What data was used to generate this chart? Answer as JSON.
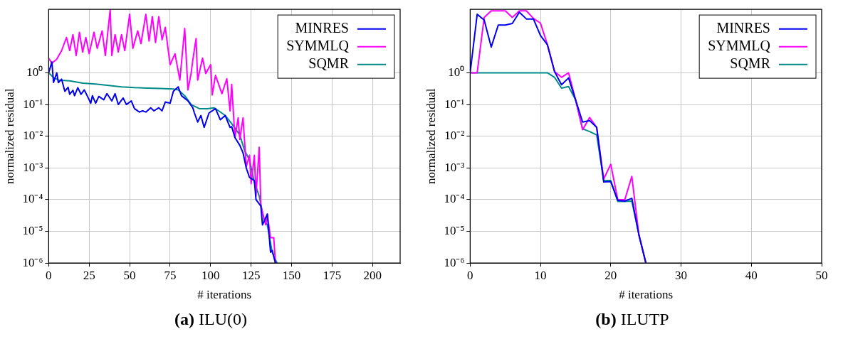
{
  "chart_data": [
    {
      "type": "line",
      "title": "(a) ILU(0)",
      "xlabel": "# iterations",
      "ylabel": "normalized residual",
      "log": "y",
      "grid": true,
      "legend": "top right",
      "line_style": "solid",
      "marker": "none",
      "xlim": [
        0,
        217
      ],
      "xticks": [
        0,
        25,
        50,
        75,
        100,
        125,
        150,
        175,
        200
      ],
      "ylim": [
        1e-06,
        100
      ],
      "yticks": [
        {
          "value": 1e-06,
          "label": "10⁻⁶"
        },
        {
          "value": 1e-05,
          "label": "10⁻⁵"
        },
        {
          "value": 0.0001,
          "label": "10⁻⁴"
        },
        {
          "value": 0.001,
          "label": "10⁻³"
        },
        {
          "value": 0.01,
          "label": "10⁻²"
        },
        {
          "value": 0.1,
          "label": "10⁻¹"
        },
        {
          "value": 1,
          "label": "10⁰"
        }
      ],
      "series": [
        {
          "name": "MINRES",
          "color": "#0000ee",
          "x": [
            0,
            2,
            3,
            5,
            6,
            8,
            10,
            12,
            13,
            15,
            16,
            18,
            20,
            22,
            24,
            26,
            27,
            29,
            31,
            34,
            36,
            39,
            41,
            43,
            46,
            48,
            51,
            53,
            56,
            58,
            60,
            63,
            65,
            68,
            70,
            72,
            75,
            77,
            80,
            82,
            86,
            89,
            90,
            92,
            94,
            96,
            99,
            103,
            106,
            109,
            112,
            113,
            115,
            118,
            120,
            122,
            124,
            127,
            128,
            131,
            132,
            135,
            137,
            138,
            140
          ],
          "values": [
            1.0,
            2.2,
            0.5,
            1.0,
            0.49,
            0.63,
            0.26,
            0.35,
            0.21,
            0.28,
            0.19,
            0.34,
            0.21,
            0.29,
            0.18,
            0.11,
            0.19,
            0.11,
            0.18,
            0.14,
            0.22,
            0.13,
            0.22,
            0.1,
            0.16,
            0.1,
            0.13,
            0.074,
            0.058,
            0.063,
            0.058,
            0.079,
            0.063,
            0.079,
            0.063,
            0.12,
            0.11,
            0.26,
            0.36,
            0.19,
            0.13,
            0.079,
            0.054,
            0.028,
            0.045,
            0.019,
            0.054,
            0.074,
            0.033,
            0.045,
            0.019,
            0.02,
            0.0091,
            0.0052,
            0.003,
            0.001,
            0.0005,
            0.0004,
            0.0001,
            6.3e-05,
            1.6e-05,
            3.5e-05,
            2.2e-06,
            2.5e-06,
            1e-06
          ]
        },
        {
          "name": "SYMMLQ",
          "color": "#ff00ff",
          "x": [
            0,
            2,
            5,
            8,
            11,
            13,
            15,
            17,
            19,
            21,
            23,
            25,
            28,
            30,
            33,
            35,
            38,
            39,
            41,
            43,
            45,
            47,
            50,
            52,
            55,
            57,
            60,
            62,
            64,
            66,
            68,
            70,
            72,
            75,
            78,
            81,
            84,
            86,
            88,
            89,
            91,
            92,
            95,
            97,
            100,
            101,
            103,
            107,
            110,
            112,
            113,
            115,
            117,
            118,
            120,
            122,
            124,
            125,
            127,
            128,
            130,
            131,
            134,
            135,
            137,
            139,
            140
          ],
          "values": [
            2.9,
            2,
            2.7,
            5,
            13,
            5,
            16,
            3.5,
            19,
            4.5,
            13,
            4,
            19,
            5.9,
            21,
            3.5,
            100,
            3.5,
            16,
            4.5,
            16,
            5,
            70,
            5.9,
            21,
            8.3,
            70,
            10,
            59,
            9,
            59,
            11,
            27,
            1.8,
            4,
            0.59,
            25,
            0.29,
            1,
            2.5,
            12,
            0.59,
            2.9,
            0.95,
            1.8,
            0.2,
            0.83,
            0.22,
            0.65,
            0.063,
            0.43,
            0.0091,
            0.038,
            0.0079,
            0.038,
            0.0011,
            0.0025,
            0.00032,
            0.0025,
            0.00013,
            0.0045,
            6.3e-05,
            1.6e-05,
            3.5e-05,
            6.3e-06,
            6.3e-06,
            1e-06
          ]
        },
        {
          "name": "SQMR",
          "color": "#008b8b",
          "x": [
            0,
            3,
            6,
            13,
            21,
            29,
            37,
            45,
            53,
            61,
            69,
            77,
            80,
            84,
            88,
            93,
            98,
            102,
            105,
            109,
            113,
            118,
            121,
            124,
            127,
            130,
            133,
            135,
            138,
            141
          ],
          "values": [
            1.0,
            0.71,
            0.59,
            0.56,
            0.47,
            0.44,
            0.4,
            0.36,
            0.34,
            0.33,
            0.32,
            0.31,
            0.29,
            0.19,
            0.1,
            0.074,
            0.074,
            0.079,
            0.063,
            0.045,
            0.025,
            0.011,
            0.0035,
            0.0018,
            0.00035,
            0.00013,
            2.2e-05,
            1.6e-05,
            2.2e-06,
            1e-06
          ]
        }
      ]
    },
    {
      "type": "line",
      "title": "(b) ILUTP",
      "xlabel": "# iterations",
      "ylabel": "normalized residual",
      "log": "y",
      "grid": true,
      "legend": "top right",
      "line_style": "solid",
      "marker": "none",
      "xlim": [
        0,
        50
      ],
      "xticks": [
        0,
        10,
        20,
        30,
        40,
        50
      ],
      "ylim": [
        1e-06,
        100
      ],
      "yticks": [
        {
          "value": 1e-06,
          "label": "10⁻⁶"
        },
        {
          "value": 1e-05,
          "label": "10⁻⁵"
        },
        {
          "value": 0.0001,
          "label": "10⁻⁴"
        },
        {
          "value": 0.001,
          "label": "10⁻³"
        },
        {
          "value": 0.01,
          "label": "10⁻²"
        },
        {
          "value": 0.1,
          "label": "10⁻¹"
        },
        {
          "value": 1,
          "label": "10⁰"
        }
      ],
      "series": [
        {
          "name": "MINRES",
          "color": "#0000ee",
          "x": [
            0,
            1,
            2,
            3,
            4,
            5,
            6,
            7,
            8,
            9,
            10,
            11,
            12,
            13,
            14,
            15,
            16,
            17,
            18,
            19,
            20,
            21,
            22,
            23,
            24,
            25
          ],
          "values": [
            1.0,
            70,
            46,
            6.5,
            32,
            32,
            36,
            81,
            50,
            50,
            15,
            7.6,
            1.1,
            0.42,
            0.69,
            0.14,
            0.028,
            0.031,
            0.019,
            0.00036,
            0.00037,
            9.5e-05,
            9e-05,
            0.00011,
            7.9e-06,
            1e-06
          ]
        },
        {
          "name": "SYMMLQ",
          "color": "#ff00ff",
          "x": [
            0,
            1,
            2,
            3,
            4,
            5,
            6,
            7,
            8,
            9,
            10,
            11,
            12,
            13,
            14,
            15,
            16,
            17,
            18,
            19,
            20,
            21,
            22,
            23,
            24,
            25
          ],
          "values": [
            1.0,
            1.0,
            56,
            90,
            90,
            90,
            56,
            90,
            90,
            52,
            37,
            7.6,
            1.1,
            0.72,
            1.0,
            0.14,
            0.016,
            0.039,
            0.019,
            0.00045,
            0.0013,
            0.0001,
            0.0001,
            0.00054,
            7.9e-06,
            1e-06
          ]
        },
        {
          "name": "SQMR",
          "color": "#008b8b",
          "x": [
            0,
            1,
            2,
            3,
            4,
            5,
            6,
            7,
            8,
            9,
            10,
            11,
            12,
            13,
            14,
            15,
            16,
            17,
            18,
            19,
            20,
            21,
            22,
            23,
            24,
            25
          ],
          "values": [
            1.0,
            1.0,
            1.0,
            1.0,
            1.0,
            1.0,
            1.0,
            1.0,
            1.0,
            1.0,
            1.0,
            1.0,
            0.72,
            0.33,
            0.37,
            0.14,
            0.017,
            0.014,
            0.011,
            0.0004,
            0.0004,
            8.8e-05,
            8.8e-05,
            9e-05,
            7.9e-06,
            1e-06
          ]
        }
      ]
    }
  ]
}
